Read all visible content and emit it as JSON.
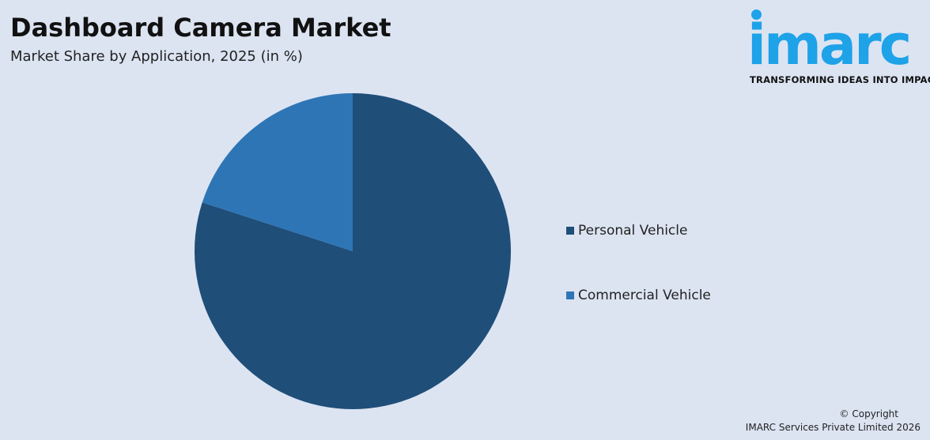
{
  "header": {
    "title": "Dashboard Camera Market",
    "subtitle": "Market Share by Application, 2025 (in %)"
  },
  "logo": {
    "wordmark": "imarc",
    "tagline": "TRANSFORMING IDEAS INTO IMPACT",
    "color": "#1ea2e8"
  },
  "chart_data": {
    "type": "pie",
    "title": "Dashboard Camera Market",
    "subtitle": "Market Share by Application, 2025 (in %)",
    "categories": [
      "Personal Vehicle",
      "Commercial Vehicle"
    ],
    "values": [
      80,
      20
    ],
    "colors": [
      "#1f4e79",
      "#2e75b6"
    ],
    "start_angle_deg": 0,
    "direction": "clockwise",
    "legend_position": "right"
  },
  "footer": {
    "copyright_line1": "© Copyright",
    "copyright_line2": "IMARC Services Private Limited 2026"
  },
  "colors": {
    "background": "#dce4f2"
  }
}
